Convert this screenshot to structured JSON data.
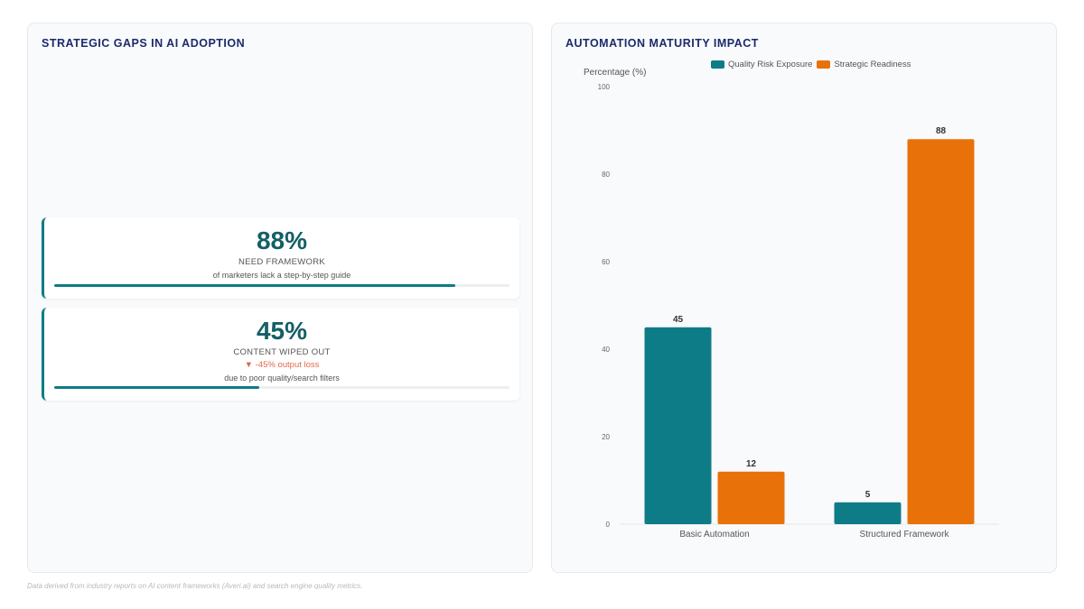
{
  "left_panel": {
    "title": "STRATEGIC GAPS IN AI ADOPTION",
    "cards": [
      {
        "value": "88%",
        "label": "NEED FRAMEWORK",
        "description": "of marketers lack a step-by-step guide",
        "progress": 0.88
      },
      {
        "value": "45%",
        "label": "CONTENT WIPED OUT",
        "delta": "▼ -45% output loss",
        "description": "due to poor quality/search filters",
        "progress": 0.45
      }
    ]
  },
  "right_panel": {
    "title": "AUTOMATION MATURITY IMPACT"
  },
  "footer": {
    "note": "Data derived from industry reports on AI content frameworks (Averi.ai) and search engine quality metrics."
  },
  "colors": {
    "teal": "#0e7c86",
    "orange": "#e8710a"
  },
  "chart_data": {
    "type": "bar",
    "title": "AUTOMATION MATURITY IMPACT",
    "ylabel": "Percentage (%)",
    "xlabel": "",
    "categories": [
      "Basic Automation",
      "Structured Framework"
    ],
    "series": [
      {
        "name": "Quality Risk Exposure",
        "values": [
          45,
          5
        ],
        "color": "#0e7c86"
      },
      {
        "name": "Strategic Readiness",
        "values": [
          12,
          88
        ],
        "color": "#e8710a"
      }
    ],
    "ylim": [
      0,
      100
    ],
    "yticks": [
      0,
      20,
      40,
      60,
      80,
      100
    ],
    "legend": "top",
    "grid": false
  }
}
